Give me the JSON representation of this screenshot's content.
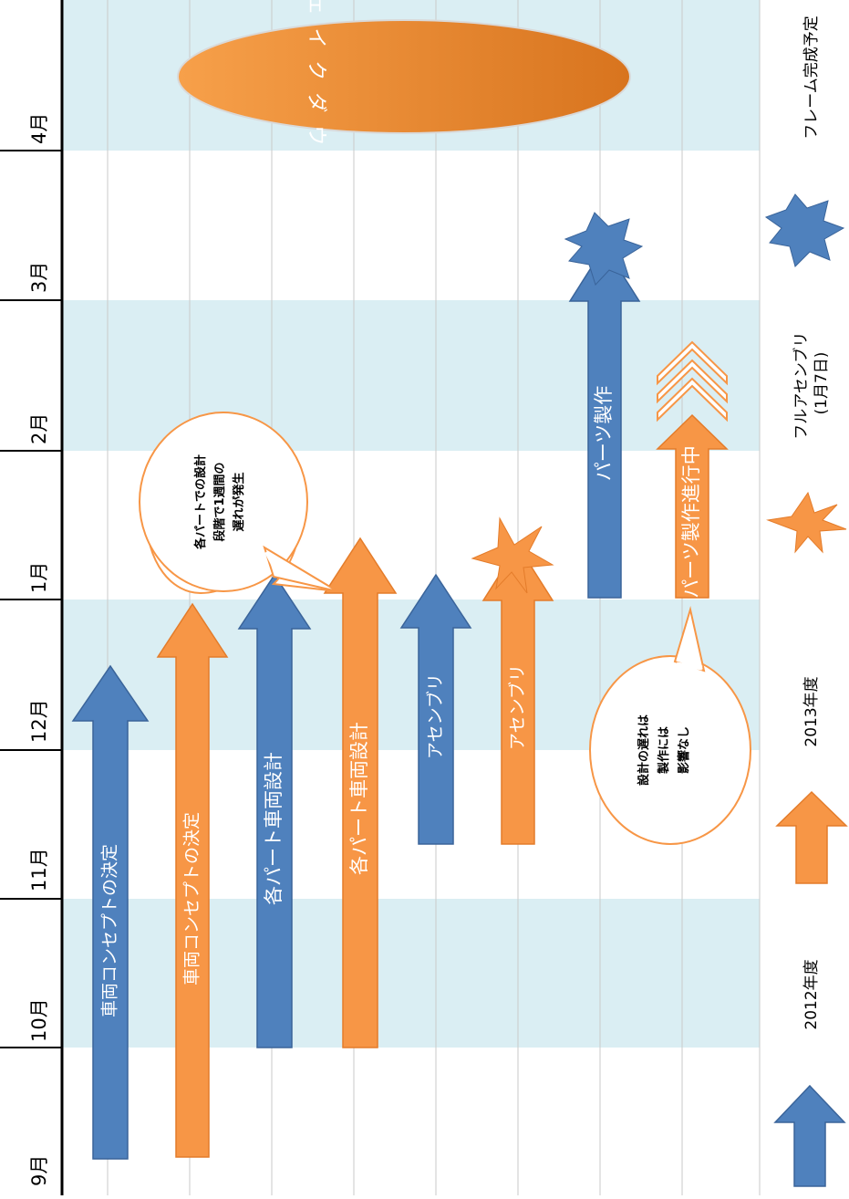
{
  "months": [
    "9月",
    "10月",
    "11月",
    "12月",
    "1月",
    "2月",
    "3月",
    "4月"
  ],
  "tasks": {
    "blue_concept": "車両コンセプトの決定",
    "orange_concept": "車両コンセプトの決定",
    "blue_design": "各パート車両設計",
    "orange_design": "各パート車両設計",
    "blue_assembly": "アセンブリ",
    "orange_assembly": "アセンブリ",
    "blue_parts": "パーツ製作",
    "orange_parts": "パーツ製作進行中"
  },
  "shakedown": "シェイクダウン",
  "callouts": {
    "delay": [
      "各パートでの設計",
      "段階で1週間の",
      "遅れが発生"
    ],
    "no_impact": [
      "設計の遅れは",
      "製作には",
      "影響なし"
    ]
  },
  "legend": {
    "blue_arrow": "2012年度",
    "orange_arrow": "2013年度",
    "orange_star": "フルアセンブリ\n(1月7日)",
    "blue_star": "フレーム完成予定"
  },
  "colors": {
    "blue": "#4f81bd",
    "orange": "#f79646",
    "band": "#daeef3"
  }
}
